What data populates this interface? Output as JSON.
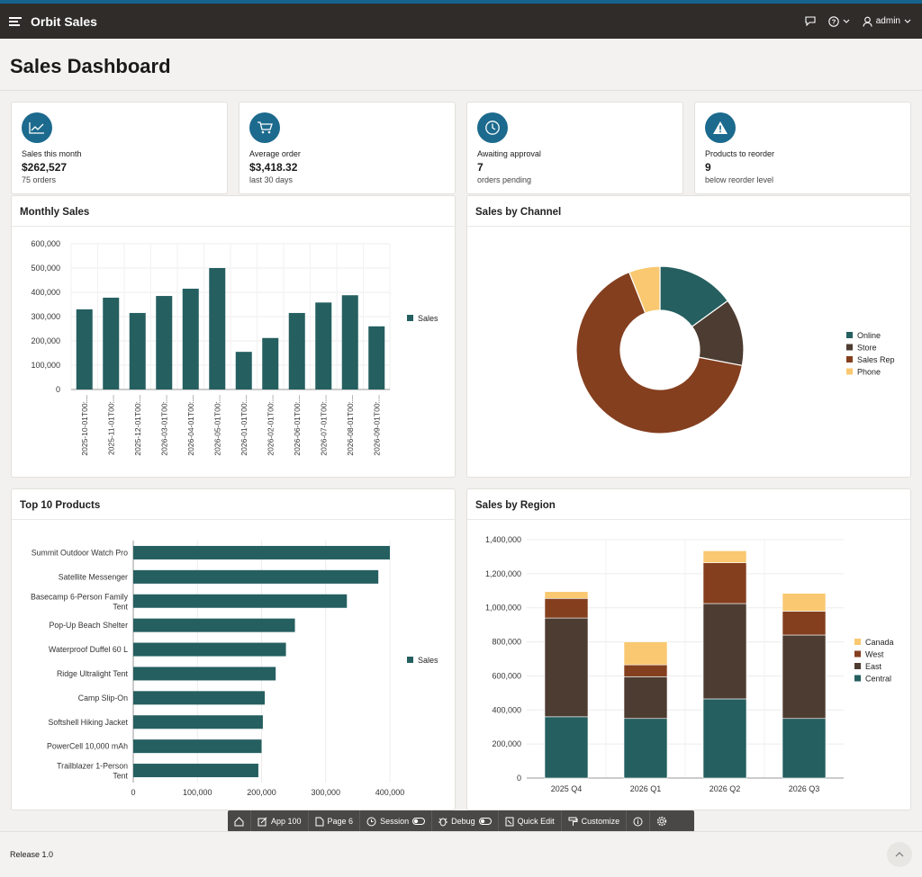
{
  "app": {
    "title": "Orbit Sales",
    "user": "admin"
  },
  "page": {
    "title": "Sales Dashboard"
  },
  "kpis": [
    {
      "icon": "trend-chart-icon",
      "label": "Sales this month",
      "value": "$262,527",
      "sub": "75 orders"
    },
    {
      "icon": "cart-icon",
      "label": "Average order",
      "value": "$3,418.32",
      "sub": "last 30 days"
    },
    {
      "icon": "clock-icon",
      "label": "Awaiting approval",
      "value": "7",
      "sub": "orders pending"
    },
    {
      "icon": "warning-icon",
      "label": "Products to reorder",
      "value": "9",
      "sub": "below reorder level"
    }
  ],
  "panels": {
    "monthly": "Monthly Sales",
    "channel": "Sales by Channel",
    "top10": "Top 10 Products",
    "region": "Sales by Region"
  },
  "colors": {
    "teal": "#255f60",
    "dark": "#4d3c31",
    "rust": "#843f1f",
    "gold": "#f9c870",
    "brand": "#1c6a8e"
  },
  "chart_data": [
    {
      "type": "bar",
      "title": "Monthly Sales",
      "categories": [
        "2025-10-01T00:...",
        "2025-11-01T00:...",
        "2025-12-01T00:...",
        "2026-03-01T00:...",
        "2026-04-01T00:...",
        "2026-05-01T00:...",
        "2026-01-01T00:...",
        "2026-02-01T00:...",
        "2026-06-01T00:...",
        "2026-07-01T00:...",
        "2026-08-01T00:...",
        "2026-09-01T00:..."
      ],
      "series": [
        {
          "name": "Sales",
          "values": [
            330000,
            378000,
            315000,
            385000,
            415000,
            500000,
            155000,
            212000,
            315000,
            358000,
            388000,
            260000
          ]
        }
      ],
      "yticks": [
        "600,000",
        "500,000",
        "400,000",
        "300,000",
        "200,000",
        "100,000",
        "0"
      ],
      "ylim": [
        0,
        600000
      ],
      "legend": "right"
    },
    {
      "type": "pie",
      "title": "Sales by Channel",
      "labels": [
        "Online",
        "Store",
        "Sales Rep",
        "Phone"
      ],
      "values": [
        15,
        13,
        66,
        6
      ],
      "legend": "right"
    },
    {
      "type": "bar",
      "orientation": "horizontal",
      "title": "Top 10 Products",
      "categories": [
        "Summit Outdoor Watch Pro",
        "Satellite Messenger",
        "Basecamp 6-Person Family Tent",
        "Pop-Up Beach Shelter",
        "Waterproof Duffel 60 L",
        "Ridge Ultralight Tent",
        "Camp Slip-On",
        "Softshell Hiking Jacket",
        "PowerCell 10,000 mAh",
        "Trailblazer 1-Person Tent"
      ],
      "series": [
        {
          "name": "Sales",
          "values": [
            400000,
            382000,
            333000,
            252000,
            238000,
            222000,
            205000,
            202000,
            200000,
            195000
          ]
        }
      ],
      "xticks": [
        "0",
        "100,000",
        "200,000",
        "300,000",
        "400,000"
      ],
      "xlim": [
        0,
        400000
      ],
      "legend": "right"
    },
    {
      "type": "bar",
      "stacked": true,
      "title": "Sales by Region",
      "categories": [
        "2025 Q4",
        "2026 Q1",
        "2026 Q2",
        "2026 Q3"
      ],
      "series": [
        {
          "name": "Central",
          "values": [
            360000,
            350000,
            465000,
            350000
          ]
        },
        {
          "name": "East",
          "values": [
            580000,
            245000,
            560000,
            490000
          ]
        },
        {
          "name": "West",
          "values": [
            115000,
            70000,
            240000,
            140000
          ]
        },
        {
          "name": "Canada",
          "values": [
            40000,
            135000,
            70000,
            105000
          ]
        }
      ],
      "yticks": [
        "1,400,000",
        "1,200,000",
        "1,000,000",
        "800,000",
        "600,000",
        "400,000",
        "200,000",
        "0"
      ],
      "ylim": [
        0,
        1400000
      ],
      "legend": "right"
    }
  ],
  "devbar": {
    "app": "App 100",
    "page": "Page 6",
    "session": "Session",
    "debug": "Debug",
    "quick_edit": "Quick Edit",
    "customize": "Customize"
  },
  "footer": {
    "release": "Release 1.0"
  }
}
